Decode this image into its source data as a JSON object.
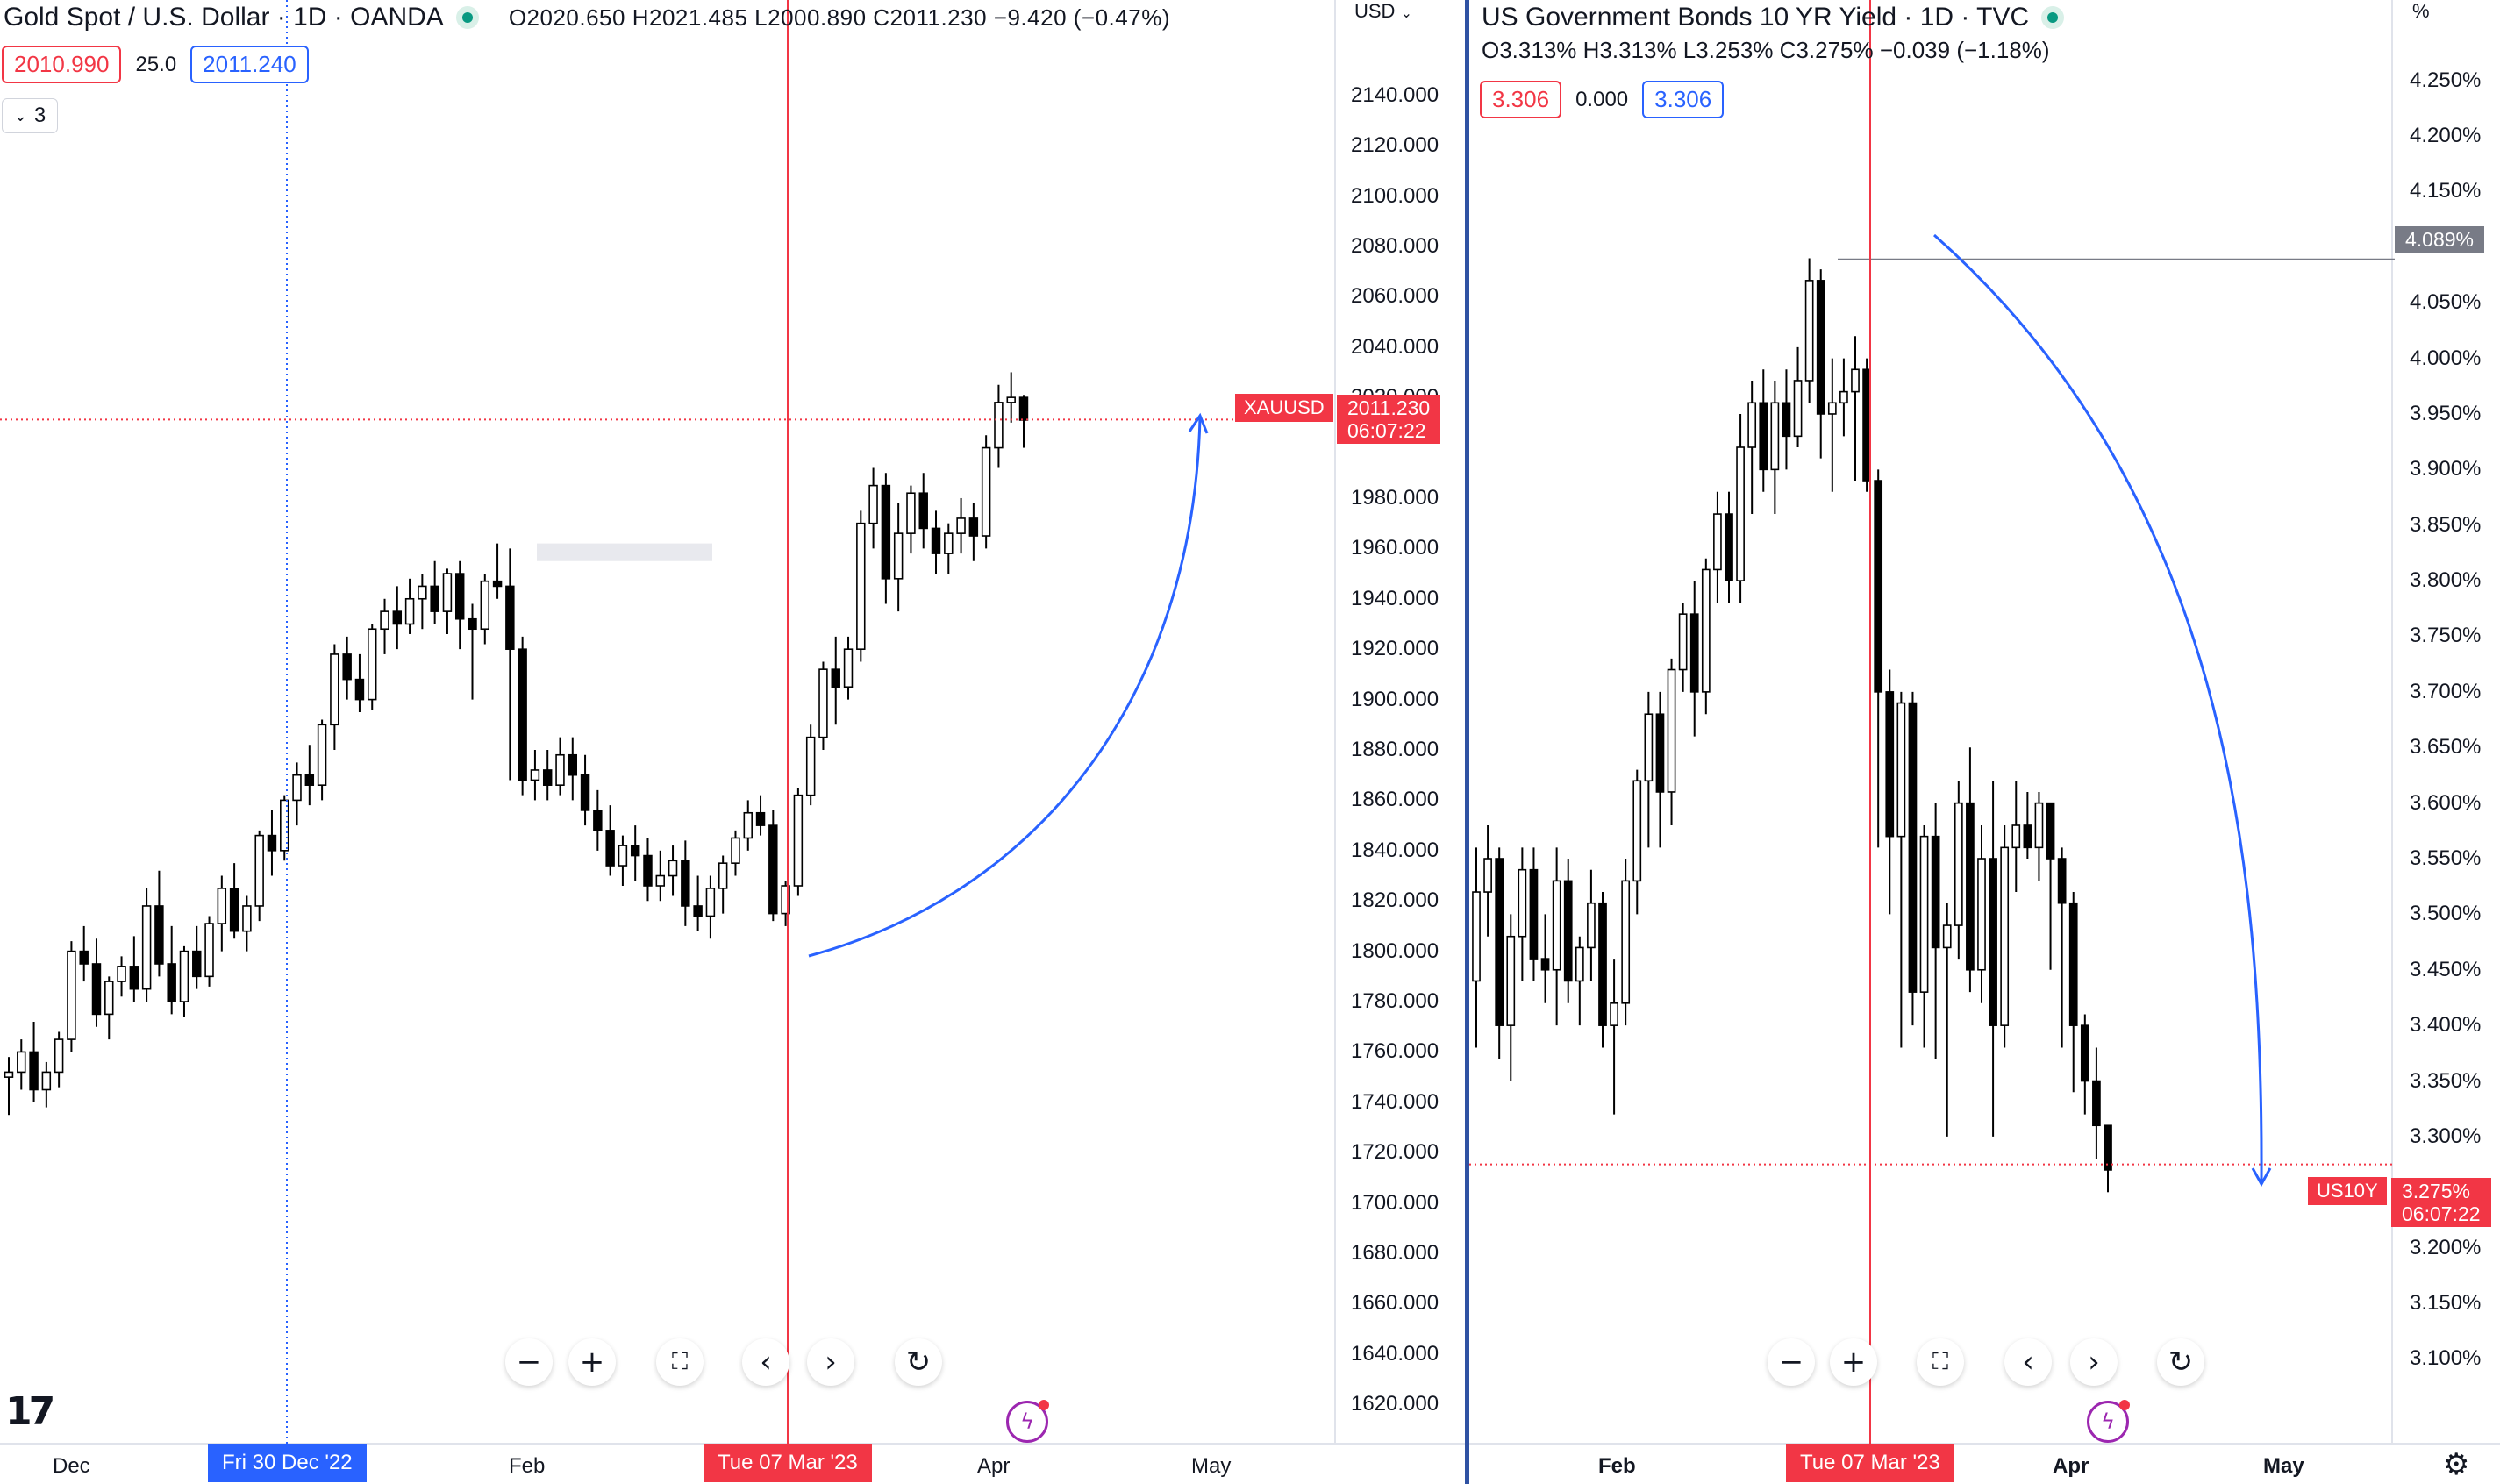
{
  "left_chart": {
    "title": "Gold Spot / U.S. Dollar · 1D · OANDA",
    "ohlc": "O2020.650  H2021.485  L2000.890  C2011.230  −9.420 (−0.47%)",
    "sell_price": "2010.990",
    "spread": "25.0",
    "buy_price": "2011.240",
    "indicator_count": "3",
    "currency": "USD",
    "symbol_tag": "XAUUSD",
    "last_price_tag": "2011.230",
    "countdown": "06:07:22",
    "crosshair_date": "Tue 07 Mar '23",
    "cursor_date": "Fri 30 Dec '22",
    "time_labels": [
      "Dec",
      "Feb",
      "Apr",
      "May"
    ]
  },
  "right_chart": {
    "title": "US Government Bonds 10 YR Yield · 1D · TVC",
    "ohlc": "O3.313%  H3.313%  L3.253%  C3.275%  −0.039 (−1.18%)",
    "sell_price": "3.306",
    "spread": "0.000",
    "buy_price": "3.306",
    "unit": "%",
    "symbol_tag": "US10Y",
    "last_price_tag": "3.275%",
    "countdown": "06:07:22",
    "level_tag": "4.089%",
    "crosshair_date": "Tue 07 Mar '23",
    "time_labels": [
      "Feb",
      "Apr",
      "May"
    ]
  },
  "toolbar": {
    "zoom_out": "−",
    "zoom_in": "+",
    "fullscreen": "⛶",
    "scroll_left": "‹",
    "scroll_right": "›",
    "reset": "↻"
  },
  "colors": {
    "up_candle": "#ffffff",
    "down_candle": "#000000",
    "accent_red": "#f23645",
    "accent_blue": "#2962ff",
    "drawing_blue": "#2962ff"
  },
  "chart_data": [
    {
      "type": "candlestick",
      "title": "Gold Spot / U.S. Dollar · 1D · OANDA",
      "ylim": [
        1610,
        2150
      ],
      "y_ticks": [
        2140,
        2120,
        2100,
        2080,
        2060,
        2040,
        2020,
        1980,
        1960,
        1940,
        1920,
        1900,
        1880,
        1860,
        1840,
        1820,
        1800,
        1780,
        1760,
        1740,
        1720,
        1700,
        1680,
        1660,
        1640,
        1620
      ],
      "y_tick_labels": [
        "2140.000",
        "2120.000",
        "2100.000",
        "2080.000",
        "2060.000",
        "2040.000",
        "2020.000",
        "1980.000",
        "1960.000",
        "1940.000",
        "1920.000",
        "1900.000",
        "1880.000",
        "1860.000",
        "1840.000",
        "1820.000",
        "1800.000",
        "1780.000",
        "1760.000",
        "1740.000",
        "1720.000",
        "1700.000",
        "1680.000",
        "1660.000",
        "1640.000",
        "1620.000"
      ],
      "last_price": 2011.23,
      "resistance_zone": [
        1955,
        1962
      ],
      "candles": [
        [
          1750,
          1758,
          1735,
          1752
        ],
        [
          1752,
          1765,
          1745,
          1760
        ],
        [
          1760,
          1772,
          1740,
          1745
        ],
        [
          1745,
          1756,
          1738,
          1752
        ],
        [
          1752,
          1768,
          1746,
          1765
        ],
        [
          1765,
          1804,
          1760,
          1800
        ],
        [
          1800,
          1810,
          1788,
          1795
        ],
        [
          1795,
          1805,
          1770,
          1775
        ],
        [
          1775,
          1790,
          1765,
          1788
        ],
        [
          1788,
          1798,
          1782,
          1794
        ],
        [
          1794,
          1806,
          1780,
          1785
        ],
        [
          1785,
          1825,
          1780,
          1818
        ],
        [
          1818,
          1832,
          1790,
          1795
        ],
        [
          1795,
          1810,
          1775,
          1780
        ],
        [
          1780,
          1802,
          1774,
          1800
        ],
        [
          1800,
          1810,
          1785,
          1790
        ],
        [
          1790,
          1814,
          1786,
          1811
        ],
        [
          1811,
          1830,
          1800,
          1825
        ],
        [
          1825,
          1835,
          1805,
          1808
        ],
        [
          1808,
          1822,
          1800,
          1818
        ],
        [
          1818,
          1848,
          1812,
          1846
        ],
        [
          1846,
          1856,
          1830,
          1840
        ],
        [
          1840,
          1862,
          1836,
          1860
        ],
        [
          1860,
          1875,
          1850,
          1870
        ],
        [
          1870,
          1882,
          1858,
          1866
        ],
        [
          1866,
          1892,
          1860,
          1890
        ],
        [
          1890,
          1922,
          1880,
          1918
        ],
        [
          1918,
          1925,
          1900,
          1908
        ],
        [
          1908,
          1918,
          1895,
          1900
        ],
        [
          1900,
          1930,
          1896,
          1928
        ],
        [
          1928,
          1940,
          1918,
          1935
        ],
        [
          1935,
          1945,
          1920,
          1930
        ],
        [
          1930,
          1948,
          1926,
          1940
        ],
        [
          1940,
          1950,
          1928,
          1945
        ],
        [
          1945,
          1955,
          1930,
          1935
        ],
        [
          1935,
          1952,
          1926,
          1950
        ],
        [
          1950,
          1955,
          1920,
          1932
        ],
        [
          1932,
          1938,
          1900,
          1928
        ],
        [
          1928,
          1950,
          1922,
          1947
        ],
        [
          1947,
          1962,
          1940,
          1945
        ],
        [
          1945,
          1960,
          1868,
          1920
        ],
        [
          1920,
          1925,
          1862,
          1868
        ],
        [
          1868,
          1880,
          1860,
          1872
        ],
        [
          1872,
          1880,
          1860,
          1866
        ],
        [
          1866,
          1885,
          1862,
          1878
        ],
        [
          1878,
          1885,
          1860,
          1870
        ],
        [
          1870,
          1878,
          1850,
          1856
        ],
        [
          1856,
          1864,
          1840,
          1848
        ],
        [
          1848,
          1858,
          1830,
          1834
        ],
        [
          1834,
          1846,
          1826,
          1842
        ],
        [
          1842,
          1850,
          1828,
          1838
        ],
        [
          1838,
          1845,
          1820,
          1826
        ],
        [
          1826,
          1840,
          1820,
          1830
        ],
        [
          1830,
          1842,
          1822,
          1836
        ],
        [
          1836,
          1844,
          1810,
          1818
        ],
        [
          1818,
          1830,
          1808,
          1814
        ],
        [
          1814,
          1830,
          1805,
          1825
        ],
        [
          1825,
          1838,
          1815,
          1835
        ],
        [
          1835,
          1848,
          1830,
          1845
        ],
        [
          1845,
          1860,
          1840,
          1855
        ],
        [
          1855,
          1862,
          1846,
          1850
        ],
        [
          1850,
          1856,
          1812,
          1815
        ],
        [
          1815,
          1828,
          1810,
          1826
        ],
        [
          1826,
          1865,
          1822,
          1862
        ],
        [
          1862,
          1890,
          1858,
          1885
        ],
        [
          1885,
          1915,
          1880,
          1912
        ],
        [
          1912,
          1925,
          1890,
          1905
        ],
        [
          1905,
          1925,
          1900,
          1920
        ],
        [
          1920,
          1975,
          1915,
          1970
        ],
        [
          1970,
          1992,
          1960,
          1985
        ],
        [
          1985,
          1990,
          1938,
          1948
        ],
        [
          1948,
          1978,
          1935,
          1966
        ],
        [
          1966,
          1985,
          1958,
          1982
        ],
        [
          1982,
          1990,
          1960,
          1968
        ],
        [
          1968,
          1975,
          1950,
          1958
        ],
        [
          1958,
          1970,
          1950,
          1966
        ],
        [
          1966,
          1980,
          1958,
          1972
        ],
        [
          1972,
          1978,
          1955,
          1965
        ],
        [
          1965,
          2005,
          1960,
          2000
        ],
        [
          2000,
          2025,
          1992,
          2018
        ],
        [
          2018,
          2030,
          2010,
          2020
        ],
        [
          2020,
          2021,
          2000,
          2011
        ]
      ]
    },
    {
      "type": "candlestick",
      "title": "US Government Bonds 10 YR Yield · 1D · TVC",
      "ylim": [
        3.068,
        4.275
      ],
      "y_ticks": [
        4.25,
        4.2,
        4.15,
        4.1,
        4.05,
        4.0,
        3.95,
        3.9,
        3.85,
        3.8,
        3.75,
        3.7,
        3.65,
        3.6,
        3.55,
        3.5,
        3.45,
        3.4,
        3.35,
        3.3,
        3.2,
        3.15,
        3.1
      ],
      "y_tick_labels": [
        "4.250%",
        "4.200%",
        "4.150%",
        "4.100%",
        "4.050%",
        "4.000%",
        "3.950%",
        "3.900%",
        "3.850%",
        "3.800%",
        "3.750%",
        "3.700%",
        "3.650%",
        "3.600%",
        "3.550%",
        "3.500%",
        "3.450%",
        "3.400%",
        "3.350%",
        "3.300%",
        "3.200%",
        "3.150%",
        "3.100%"
      ],
      "last_price": 3.275,
      "level_line": 4.089,
      "candles": [
        [
          3.44,
          3.56,
          3.38,
          3.52
        ],
        [
          3.52,
          3.58,
          3.48,
          3.55
        ],
        [
          3.55,
          3.56,
          3.37,
          3.4
        ],
        [
          3.4,
          3.5,
          3.35,
          3.48
        ],
        [
          3.48,
          3.56,
          3.44,
          3.54
        ],
        [
          3.54,
          3.56,
          3.44,
          3.46
        ],
        [
          3.46,
          3.5,
          3.42,
          3.45
        ],
        [
          3.45,
          3.56,
          3.4,
          3.53
        ],
        [
          3.53,
          3.55,
          3.42,
          3.44
        ],
        [
          3.44,
          3.48,
          3.4,
          3.47
        ],
        [
          3.47,
          3.54,
          3.44,
          3.51
        ],
        [
          3.51,
          3.52,
          3.38,
          3.4
        ],
        [
          3.4,
          3.46,
          3.32,
          3.42
        ],
        [
          3.42,
          3.55,
          3.4,
          3.53
        ],
        [
          3.53,
          3.63,
          3.5,
          3.62
        ],
        [
          3.62,
          3.7,
          3.56,
          3.68
        ],
        [
          3.68,
          3.7,
          3.56,
          3.61
        ],
        [
          3.61,
          3.73,
          3.58,
          3.72
        ],
        [
          3.72,
          3.78,
          3.7,
          3.77
        ],
        [
          3.77,
          3.8,
          3.66,
          3.7
        ],
        [
          3.7,
          3.82,
          3.68,
          3.81
        ],
        [
          3.81,
          3.88,
          3.78,
          3.86
        ],
        [
          3.86,
          3.88,
          3.78,
          3.8
        ],
        [
          3.8,
          3.95,
          3.78,
          3.92
        ],
        [
          3.92,
          3.98,
          3.86,
          3.96
        ],
        [
          3.96,
          3.99,
          3.88,
          3.9
        ],
        [
          3.9,
          3.98,
          3.86,
          3.96
        ],
        [
          3.96,
          3.99,
          3.9,
          3.93
        ],
        [
          3.93,
          4.01,
          3.92,
          3.98
        ],
        [
          3.98,
          4.09,
          3.96,
          4.07
        ],
        [
          4.07,
          4.08,
          3.91,
          3.95
        ],
        [
          3.95,
          4.0,
          3.88,
          3.96
        ],
        [
          3.96,
          4.0,
          3.93,
          3.97
        ],
        [
          3.97,
          4.02,
          3.89,
          3.99
        ],
        [
          3.99,
          4.0,
          3.88,
          3.89
        ],
        [
          3.89,
          3.9,
          3.56,
          3.7
        ],
        [
          3.7,
          3.72,
          3.5,
          3.57
        ],
        [
          3.57,
          3.7,
          3.38,
          3.69
        ],
        [
          3.69,
          3.7,
          3.4,
          3.43
        ],
        [
          3.43,
          3.58,
          3.38,
          3.57
        ],
        [
          3.57,
          3.6,
          3.37,
          3.47
        ],
        [
          3.47,
          3.51,
          3.3,
          3.49
        ],
        [
          3.49,
          3.62,
          3.46,
          3.6
        ],
        [
          3.6,
          3.65,
          3.43,
          3.45
        ],
        [
          3.45,
          3.58,
          3.42,
          3.55
        ],
        [
          3.55,
          3.62,
          3.3,
          3.4
        ],
        [
          3.4,
          3.58,
          3.38,
          3.56
        ],
        [
          3.56,
          3.62,
          3.52,
          3.58
        ],
        [
          3.58,
          3.61,
          3.55,
          3.56
        ],
        [
          3.56,
          3.61,
          3.53,
          3.6
        ],
        [
          3.6,
          3.6,
          3.45,
          3.55
        ],
        [
          3.55,
          3.56,
          3.38,
          3.51
        ],
        [
          3.51,
          3.52,
          3.34,
          3.4
        ],
        [
          3.4,
          3.41,
          3.32,
          3.35
        ],
        [
          3.35,
          3.38,
          3.28,
          3.31
        ],
        [
          3.31,
          3.31,
          3.25,
          3.27
        ]
      ]
    }
  ]
}
